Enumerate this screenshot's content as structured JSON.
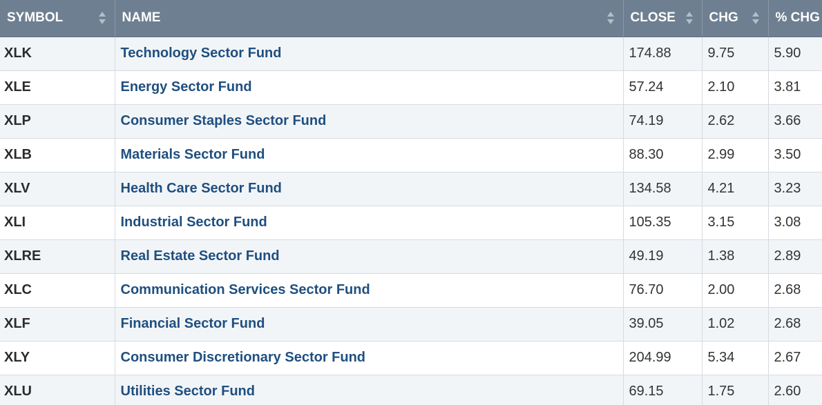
{
  "headers": {
    "symbol": "SYMBOL",
    "name": "NAME",
    "close": "CLOSE",
    "chg": "CHG",
    "pct_chg": "% CHG"
  },
  "rows": [
    {
      "symbol": "XLK",
      "name": "Technology Sector Fund",
      "close": "174.88",
      "chg": "9.75",
      "pct_chg": "5.90"
    },
    {
      "symbol": "XLE",
      "name": "Energy Sector Fund",
      "close": "57.24",
      "chg": "2.10",
      "pct_chg": "3.81"
    },
    {
      "symbol": "XLP",
      "name": "Consumer Staples Sector Fund",
      "close": "74.19",
      "chg": "2.62",
      "pct_chg": "3.66"
    },
    {
      "symbol": "XLB",
      "name": "Materials Sector Fund",
      "close": "88.30",
      "chg": "2.99",
      "pct_chg": "3.50"
    },
    {
      "symbol": "XLV",
      "name": "Health Care Sector Fund",
      "close": "134.58",
      "chg": "4.21",
      "pct_chg": "3.23"
    },
    {
      "symbol": "XLI",
      "name": "Industrial Sector Fund",
      "close": "105.35",
      "chg": "3.15",
      "pct_chg": "3.08"
    },
    {
      "symbol": "XLRE",
      "name": "Real Estate Sector Fund",
      "close": "49.19",
      "chg": "1.38",
      "pct_chg": "2.89"
    },
    {
      "symbol": "XLC",
      "name": "Communication Services Sector Fund",
      "close": "76.70",
      "chg": "2.00",
      "pct_chg": "2.68"
    },
    {
      "symbol": "XLF",
      "name": "Financial Sector Fund",
      "close": "39.05",
      "chg": "1.02",
      "pct_chg": "2.68"
    },
    {
      "symbol": "XLY",
      "name": "Consumer Discretionary Sector Fund",
      "close": "204.99",
      "chg": "5.34",
      "pct_chg": "2.67"
    },
    {
      "symbol": "XLU",
      "name": "Utilities Sector Fund",
      "close": "69.15",
      "chg": "1.75",
      "pct_chg": "2.60"
    }
  ],
  "icons": {
    "sort": "sort-arrows-icon"
  },
  "colors": {
    "header_bg": "#6e7f91",
    "link": "#1f4f80",
    "row_alt": "#f2f5f8"
  }
}
